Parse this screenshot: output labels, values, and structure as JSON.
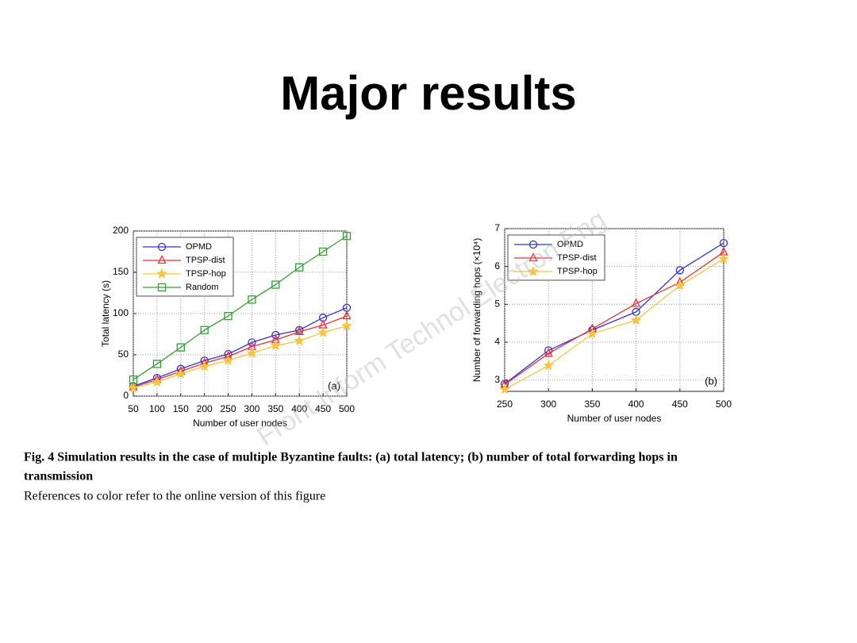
{
  "title": "Major results",
  "watermark": "Front Inform Technol Electron Eng",
  "caption": {
    "line1": "Fig. 4  Simulation results in the case of multiple Byzantine faults: (a) total latency; (b) number of total forwarding hops in",
    "line2": "transmission",
    "line3": "References to color refer to the online version of this figure"
  },
  "chart_data": [
    {
      "type": "line",
      "panel": "(a)",
      "x_label": "Number of user nodes",
      "y_label": "Total latency (s)",
      "x": [
        50,
        100,
        150,
        200,
        250,
        300,
        350,
        400,
        450,
        500
      ],
      "xlim": [
        50,
        500
      ],
      "xticks": [
        50,
        100,
        150,
        200,
        250,
        300,
        350,
        400,
        450,
        500
      ],
      "ylim": [
        0,
        200
      ],
      "yticks": [
        0,
        50,
        100,
        150,
        200
      ],
      "grid": true,
      "legend": "upper left",
      "series": [
        {
          "name": "OPMD",
          "color": "#3333cc",
          "marker": "circle",
          "values": [
            12,
            22,
            33,
            43,
            51,
            65,
            74,
            80,
            95,
            107
          ]
        },
        {
          "name": "TPSP-dist",
          "color": "#e8333a",
          "marker": "triangle",
          "values": [
            11,
            20,
            30,
            40,
            48,
            60,
            68,
            78,
            86,
            97
          ]
        },
        {
          "name": "TPSP-hop",
          "color": "#f5c542",
          "marker": "star",
          "values": [
            10,
            17,
            27,
            36,
            43,
            52,
            61,
            67,
            77,
            85
          ]
        },
        {
          "name": "Random",
          "color": "#33a033",
          "marker": "square",
          "values": [
            20,
            39,
            59,
            80,
            97,
            117,
            135,
            156,
            175,
            194
          ]
        }
      ]
    },
    {
      "type": "line",
      "panel": "(b)",
      "x_label": "Number of user nodes",
      "y_label": "Number of forwarding hops (×10⁴)",
      "x": [
        250,
        300,
        350,
        400,
        450,
        500
      ],
      "xlim": [
        250,
        500
      ],
      "xticks": [
        250,
        300,
        350,
        400,
        450,
        500
      ],
      "ylim": [
        2.7,
        7
      ],
      "yticks": [
        3,
        4,
        5,
        6,
        7
      ],
      "grid": true,
      "legend": "upper left",
      "series": [
        {
          "name": "OPMD",
          "color": "#3333cc",
          "marker": "circle",
          "values": [
            2.9,
            3.78,
            4.32,
            4.8,
            5.9,
            6.62
          ]
        },
        {
          "name": "TPSP-dist",
          "color": "#e8333a",
          "marker": "triangle",
          "values": [
            2.88,
            3.7,
            4.35,
            5.02,
            5.58,
            6.38
          ]
        },
        {
          "name": "TPSP-hop",
          "color": "#f5c542",
          "marker": "star",
          "values": [
            2.75,
            3.38,
            4.22,
            4.58,
            5.5,
            6.2
          ]
        }
      ]
    }
  ]
}
